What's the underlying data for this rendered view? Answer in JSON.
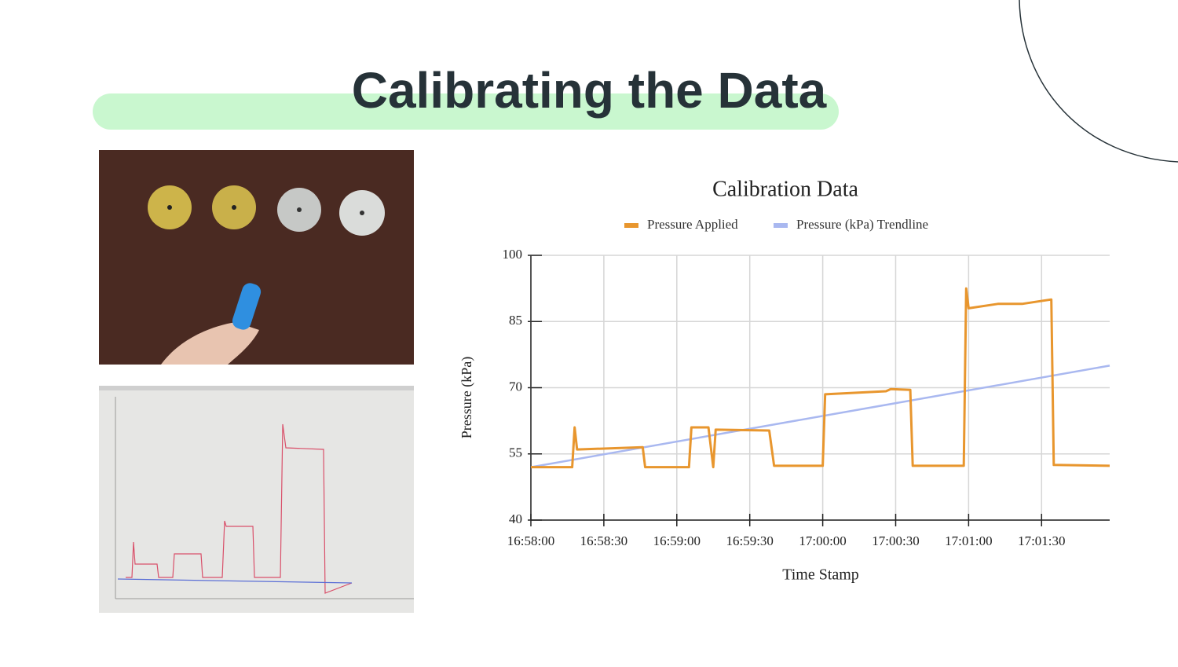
{
  "title": "Calibrating the Data",
  "chart_data": {
    "type": "line",
    "title": "Calibration Data",
    "x_label": "Time Stamp",
    "y_label": "Pressure (kPa)",
    "legend": "top",
    "grid": true,
    "xlim": [
      "16:58:00",
      "17:01:58"
    ],
    "xticks": [
      "16:58:00",
      "16:58:30",
      "16:59:00",
      "16:59:30",
      "17:00:00",
      "17:00:30",
      "17:01:00",
      "17:01:30"
    ],
    "ylim": [
      40,
      100
    ],
    "yticks": [
      40,
      55,
      70,
      85,
      100
    ],
    "series": [
      {
        "name": "Pressure Applied",
        "color": "#e8962e",
        "x": [
          "16:58:00",
          "16:58:17",
          "16:58:18",
          "16:58:19",
          "16:58:46",
          "16:58:47",
          "16:59:05",
          "16:59:06",
          "16:59:13",
          "16:59:15",
          "16:59:16",
          "16:59:38",
          "16:59:40",
          "17:00:00",
          "17:00:01",
          "17:00:26",
          "17:00:28",
          "17:00:36",
          "17:00:37",
          "17:00:58",
          "17:00:59",
          "17:01:00",
          "17:01:12",
          "17:01:22",
          "17:01:34",
          "17:01:35",
          "17:01:58"
        ],
        "values": [
          52,
          52,
          61,
          56,
          56.5,
          52,
          52,
          61,
          61,
          52,
          60.5,
          60.3,
          52.3,
          52.3,
          68.5,
          69.2,
          69.7,
          69.5,
          52.3,
          52.3,
          92.5,
          88,
          89,
          89,
          90,
          52.5,
          52.3
        ]
      },
      {
        "name": "Pressure (kPa) Trendline",
        "color": "#a9b8f0",
        "x": [
          "16:58:00",
          "17:01:58"
        ],
        "values": [
          52,
          75
        ]
      }
    ]
  }
}
